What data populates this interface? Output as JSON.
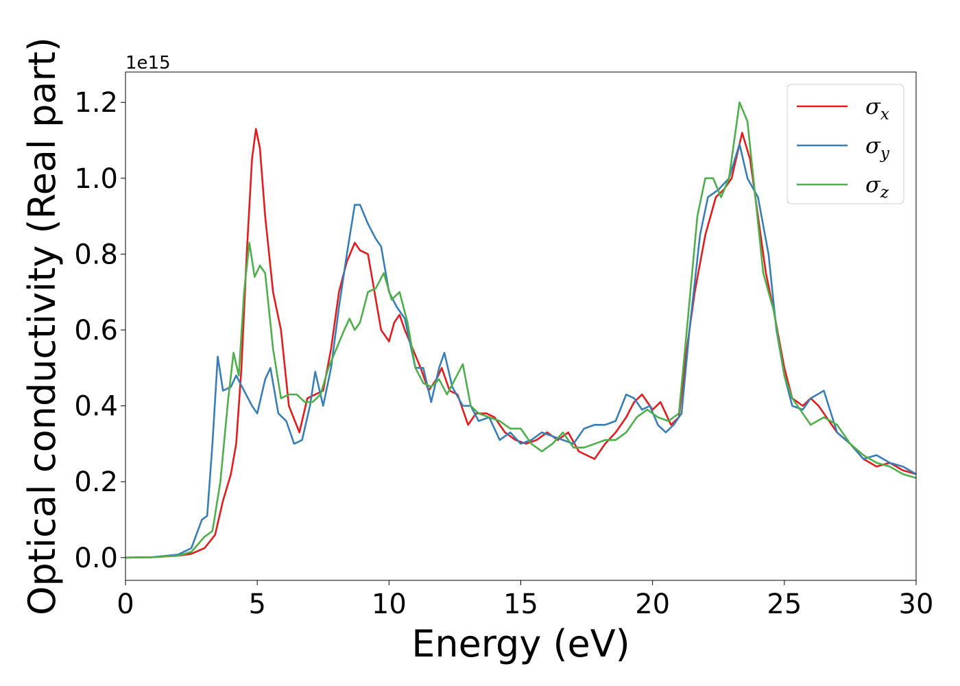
{
  "chart_data": {
    "type": "line",
    "xlabel": "Energy (eV)",
    "ylabel": "Optical conductivity (Real part)",
    "y_offset_text": "1e15",
    "y_scale": 1000000000000000.0,
    "xlim": [
      0,
      30
    ],
    "ylim": [
      -0.06,
      1.28
    ],
    "x_ticks": [
      0,
      5,
      10,
      15,
      20,
      25,
      30
    ],
    "x_tick_labels": [
      "0",
      "5",
      "10",
      "15",
      "20",
      "25",
      "30"
    ],
    "y_ticks": [
      0.0,
      0.2,
      0.4,
      0.6,
      0.8,
      1.0,
      1.2
    ],
    "y_tick_labels": [
      "0.0",
      "0.2",
      "0.4",
      "0.6",
      "0.8",
      "1.0",
      "1.2"
    ],
    "grid": false,
    "legend_position": "top-right",
    "series": [
      {
        "name": "σx",
        "name_base": "σ",
        "name_sub": "x",
        "color": "#e41a1c",
        "points": [
          [
            0,
            0
          ],
          [
            1,
            0.001
          ],
          [
            2,
            0.005
          ],
          [
            2.5,
            0.01
          ],
          [
            3,
            0.025
          ],
          [
            3.4,
            0.06
          ],
          [
            3.7,
            0.15
          ],
          [
            4,
            0.22
          ],
          [
            4.2,
            0.3
          ],
          [
            4.4,
            0.5
          ],
          [
            4.6,
            0.8
          ],
          [
            4.8,
            1.05
          ],
          [
            4.95,
            1.13
          ],
          [
            5.1,
            1.08
          ],
          [
            5.3,
            0.9
          ],
          [
            5.6,
            0.7
          ],
          [
            5.9,
            0.6
          ],
          [
            6.2,
            0.4
          ],
          [
            6.6,
            0.33
          ],
          [
            6.9,
            0.42
          ],
          [
            7.2,
            0.43
          ],
          [
            7.5,
            0.44
          ],
          [
            7.8,
            0.55
          ],
          [
            8.1,
            0.7
          ],
          [
            8.4,
            0.78
          ],
          [
            8.7,
            0.83
          ],
          [
            8.9,
            0.81
          ],
          [
            9.2,
            0.8
          ],
          [
            9.4,
            0.72
          ],
          [
            9.7,
            0.6
          ],
          [
            10,
            0.57
          ],
          [
            10.2,
            0.62
          ],
          [
            10.4,
            0.64
          ],
          [
            10.6,
            0.6
          ],
          [
            10.9,
            0.55
          ],
          [
            11.2,
            0.5
          ],
          [
            11.5,
            0.44
          ],
          [
            11.8,
            0.47
          ],
          [
            12,
            0.5
          ],
          [
            12.3,
            0.44
          ],
          [
            12.6,
            0.43
          ],
          [
            13,
            0.35
          ],
          [
            13.3,
            0.38
          ],
          [
            13.7,
            0.38
          ],
          [
            14,
            0.37
          ],
          [
            14.4,
            0.33
          ],
          [
            14.8,
            0.31
          ],
          [
            15.2,
            0.3
          ],
          [
            15.6,
            0.31
          ],
          [
            16,
            0.33
          ],
          [
            16.4,
            0.31
          ],
          [
            16.8,
            0.33
          ],
          [
            17.2,
            0.28
          ],
          [
            17.5,
            0.27
          ],
          [
            17.8,
            0.26
          ],
          [
            18.2,
            0.3
          ],
          [
            18.6,
            0.33
          ],
          [
            19,
            0.37
          ],
          [
            19.3,
            0.41
          ],
          [
            19.6,
            0.43
          ],
          [
            20,
            0.39
          ],
          [
            20.3,
            0.41
          ],
          [
            20.7,
            0.35
          ],
          [
            21,
            0.37
          ],
          [
            21.3,
            0.55
          ],
          [
            21.6,
            0.7
          ],
          [
            22,
            0.85
          ],
          [
            22.4,
            0.95
          ],
          [
            22.7,
            0.97
          ],
          [
            23,
            1.0
          ],
          [
            23.4,
            1.12
          ],
          [
            23.7,
            1.05
          ],
          [
            24,
            0.9
          ],
          [
            24.3,
            0.75
          ],
          [
            24.6,
            0.65
          ],
          [
            25,
            0.5
          ],
          [
            25.3,
            0.42
          ],
          [
            25.7,
            0.4
          ],
          [
            26,
            0.42
          ],
          [
            26.3,
            0.4
          ],
          [
            26.7,
            0.36
          ],
          [
            27,
            0.33
          ],
          [
            27.5,
            0.3
          ],
          [
            28,
            0.26
          ],
          [
            28.5,
            0.24
          ],
          [
            29,
            0.25
          ],
          [
            29.5,
            0.23
          ],
          [
            30,
            0.22
          ]
        ]
      },
      {
        "name": "σy",
        "name_base": "σ",
        "name_sub": "y",
        "color": "#377eb8",
        "points": [
          [
            0,
            0
          ],
          [
            1,
            0.001
          ],
          [
            2,
            0.008
          ],
          [
            2.5,
            0.025
          ],
          [
            2.9,
            0.1
          ],
          [
            3.1,
            0.11
          ],
          [
            3.3,
            0.3
          ],
          [
            3.5,
            0.53
          ],
          [
            3.7,
            0.44
          ],
          [
            4,
            0.45
          ],
          [
            4.2,
            0.48
          ],
          [
            4.5,
            0.44
          ],
          [
            4.8,
            0.4
          ],
          [
            5,
            0.38
          ],
          [
            5.3,
            0.47
          ],
          [
            5.5,
            0.5
          ],
          [
            5.8,
            0.38
          ],
          [
            6.1,
            0.36
          ],
          [
            6.4,
            0.3
          ],
          [
            6.7,
            0.31
          ],
          [
            7,
            0.4
          ],
          [
            7.2,
            0.49
          ],
          [
            7.5,
            0.4
          ],
          [
            7.8,
            0.5
          ],
          [
            8.1,
            0.66
          ],
          [
            8.4,
            0.8
          ],
          [
            8.7,
            0.93
          ],
          [
            8.9,
            0.93
          ],
          [
            9.2,
            0.88
          ],
          [
            9.5,
            0.84
          ],
          [
            9.7,
            0.82
          ],
          [
            10,
            0.7
          ],
          [
            10.3,
            0.66
          ],
          [
            10.6,
            0.63
          ],
          [
            11,
            0.5
          ],
          [
            11.3,
            0.5
          ],
          [
            11.6,
            0.41
          ],
          [
            11.9,
            0.5
          ],
          [
            12.1,
            0.54
          ],
          [
            12.4,
            0.45
          ],
          [
            12.8,
            0.4
          ],
          [
            13.1,
            0.4
          ],
          [
            13.4,
            0.36
          ],
          [
            13.8,
            0.37
          ],
          [
            14.2,
            0.31
          ],
          [
            14.6,
            0.33
          ],
          [
            15,
            0.3
          ],
          [
            15.4,
            0.31
          ],
          [
            15.8,
            0.33
          ],
          [
            16.2,
            0.32
          ],
          [
            16.6,
            0.31
          ],
          [
            17,
            0.3
          ],
          [
            17.4,
            0.34
          ],
          [
            17.8,
            0.35
          ],
          [
            18.2,
            0.35
          ],
          [
            18.6,
            0.36
          ],
          [
            19,
            0.43
          ],
          [
            19.3,
            0.42
          ],
          [
            19.6,
            0.39
          ],
          [
            19.9,
            0.4
          ],
          [
            20.2,
            0.35
          ],
          [
            20.5,
            0.33
          ],
          [
            20.8,
            0.35
          ],
          [
            21.1,
            0.38
          ],
          [
            21.4,
            0.6
          ],
          [
            21.8,
            0.85
          ],
          [
            22.1,
            0.95
          ],
          [
            22.5,
            0.97
          ],
          [
            22.9,
            1.0
          ],
          [
            23.3,
            1.09
          ],
          [
            23.6,
            1.0
          ],
          [
            24,
            0.95
          ],
          [
            24.4,
            0.8
          ],
          [
            24.7,
            0.6
          ],
          [
            25,
            0.48
          ],
          [
            25.3,
            0.4
          ],
          [
            25.7,
            0.39
          ],
          [
            26,
            0.42
          ],
          [
            26.5,
            0.44
          ],
          [
            27,
            0.33
          ],
          [
            27.5,
            0.3
          ],
          [
            28,
            0.26
          ],
          [
            28.5,
            0.27
          ],
          [
            29,
            0.25
          ],
          [
            29.5,
            0.24
          ],
          [
            30,
            0.22
          ]
        ]
      },
      {
        "name": "σz",
        "name_base": "σ",
        "name_sub": "z",
        "color": "#4daf4a",
        "points": [
          [
            0,
            0
          ],
          [
            1,
            0.001
          ],
          [
            2,
            0.005
          ],
          [
            2.5,
            0.015
          ],
          [
            3,
            0.055
          ],
          [
            3.3,
            0.07
          ],
          [
            3.6,
            0.2
          ],
          [
            3.9,
            0.42
          ],
          [
            4.1,
            0.54
          ],
          [
            4.3,
            0.48
          ],
          [
            4.5,
            0.7
          ],
          [
            4.7,
            0.83
          ],
          [
            4.9,
            0.74
          ],
          [
            5.1,
            0.77
          ],
          [
            5.3,
            0.75
          ],
          [
            5.6,
            0.55
          ],
          [
            5.9,
            0.42
          ],
          [
            6.2,
            0.43
          ],
          [
            6.5,
            0.43
          ],
          [
            6.8,
            0.41
          ],
          [
            7.1,
            0.41
          ],
          [
            7.4,
            0.43
          ],
          [
            7.7,
            0.5
          ],
          [
            8,
            0.55
          ],
          [
            8.3,
            0.6
          ],
          [
            8.5,
            0.63
          ],
          [
            8.7,
            0.6
          ],
          [
            8.9,
            0.62
          ],
          [
            9.2,
            0.7
          ],
          [
            9.5,
            0.71
          ],
          [
            9.8,
            0.75
          ],
          [
            10.1,
            0.68
          ],
          [
            10.4,
            0.7
          ],
          [
            10.7,
            0.62
          ],
          [
            11,
            0.5
          ],
          [
            11.3,
            0.46
          ],
          [
            11.6,
            0.45
          ],
          [
            11.9,
            0.47
          ],
          [
            12.2,
            0.43
          ],
          [
            12.5,
            0.47
          ],
          [
            12.8,
            0.51
          ],
          [
            13.1,
            0.4
          ],
          [
            13.4,
            0.38
          ],
          [
            13.8,
            0.37
          ],
          [
            14.2,
            0.36
          ],
          [
            14.6,
            0.34
          ],
          [
            15,
            0.34
          ],
          [
            15.4,
            0.3
          ],
          [
            15.8,
            0.28
          ],
          [
            16.2,
            0.3
          ],
          [
            16.6,
            0.33
          ],
          [
            17,
            0.29
          ],
          [
            17.4,
            0.29
          ],
          [
            17.8,
            0.3
          ],
          [
            18.2,
            0.31
          ],
          [
            18.6,
            0.31
          ],
          [
            19,
            0.33
          ],
          [
            19.4,
            0.37
          ],
          [
            19.8,
            0.39
          ],
          [
            20.2,
            0.37
          ],
          [
            20.6,
            0.36
          ],
          [
            21,
            0.38
          ],
          [
            21.3,
            0.6
          ],
          [
            21.7,
            0.9
          ],
          [
            22,
            1.0
          ],
          [
            22.3,
            1.0
          ],
          [
            22.6,
            0.95
          ],
          [
            22.9,
            1.0
          ],
          [
            23.3,
            1.2
          ],
          [
            23.6,
            1.15
          ],
          [
            23.9,
            0.95
          ],
          [
            24.2,
            0.75
          ],
          [
            24.6,
            0.65
          ],
          [
            25,
            0.48
          ],
          [
            25.3,
            0.42
          ],
          [
            25.7,
            0.38
          ],
          [
            26,
            0.35
          ],
          [
            26.5,
            0.37
          ],
          [
            27,
            0.35
          ],
          [
            27.5,
            0.3
          ],
          [
            28,
            0.27
          ],
          [
            28.5,
            0.25
          ],
          [
            29,
            0.24
          ],
          [
            29.5,
            0.22
          ],
          [
            30,
            0.21
          ]
        ]
      }
    ]
  }
}
